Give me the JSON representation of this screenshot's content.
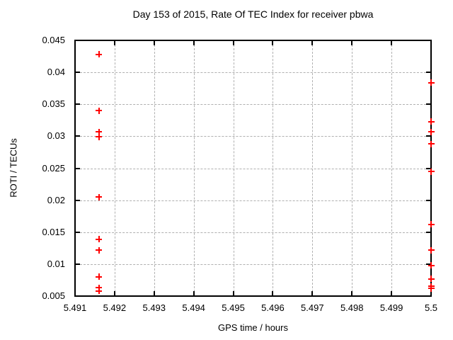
{
  "chart_data": {
    "type": "scatter",
    "title": "Day 153 of 2015, Rate Of TEC Index for receiver pbwa",
    "xlabel": "GPS time / hours",
    "ylabel": "ROTI / TECUs",
    "xlim": [
      5.491,
      5.5
    ],
    "ylim": [
      0.005,
      0.045
    ],
    "xtick_values": [
      5.491,
      5.492,
      5.493,
      5.494,
      5.495,
      5.496,
      5.497,
      5.498,
      5.499,
      5.5
    ],
    "xtick_labels": [
      "5.491",
      "5.492",
      "5.493",
      "5.494",
      "5.495",
      "5.496",
      "5.497",
      "5.498",
      "5.499",
      "5.5"
    ],
    "ytick_values": [
      0.005,
      0.01,
      0.015,
      0.02,
      0.025,
      0.03,
      0.035,
      0.04,
      0.045
    ],
    "ytick_labels": [
      "0.005",
      "0.01",
      "0.015",
      "0.02",
      "0.025",
      "0.03",
      "0.035",
      "0.04",
      "0.045"
    ],
    "grid": true,
    "legend_position": "none",
    "marker": {
      "shape": "plus",
      "color": "#ff0000",
      "size": 9
    },
    "series": [
      {
        "name": "ROTI",
        "points": [
          [
            5.4916,
            0.0428
          ],
          [
            5.4916,
            0.034
          ],
          [
            5.4916,
            0.0307
          ],
          [
            5.4916,
            0.0299
          ],
          [
            5.4916,
            0.0205
          ],
          [
            5.4916,
            0.0139
          ],
          [
            5.4916,
            0.0122
          ],
          [
            5.4916,
            0.008
          ],
          [
            5.4916,
            0.0063
          ],
          [
            5.4916,
            0.0058
          ],
          [
            5.5,
            0.0384
          ],
          [
            5.5,
            0.0323
          ],
          [
            5.5,
            0.0307
          ],
          [
            5.5,
            0.0288
          ],
          [
            5.5,
            0.0245
          ],
          [
            5.5,
            0.0162
          ],
          [
            5.5,
            0.0122
          ],
          [
            5.5,
            0.0098
          ],
          [
            5.5,
            0.0077
          ],
          [
            5.5,
            0.0065
          ],
          [
            5.5,
            0.0062
          ]
        ]
      }
    ]
  }
}
